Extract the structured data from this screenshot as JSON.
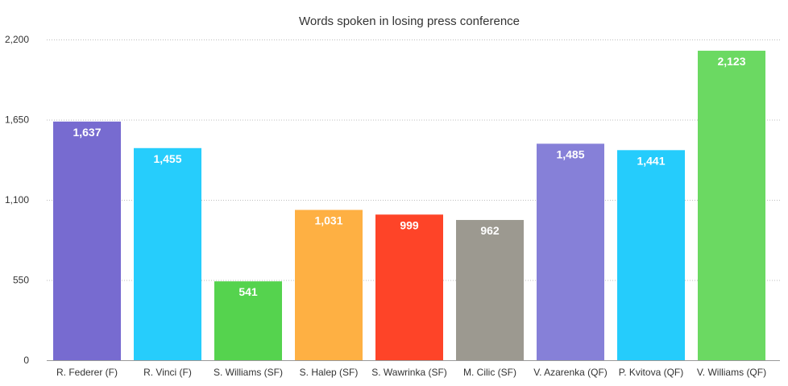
{
  "chart_data": {
    "type": "bar",
    "title": "Words spoken in losing press conference",
    "xlabel": "",
    "ylabel": "",
    "ylim": [
      0,
      2200
    ],
    "yticks": [
      "0",
      "550",
      "1,100",
      "1,650",
      "2,200"
    ],
    "ytick_values": [
      0,
      550,
      1100,
      1650,
      2200
    ],
    "grid": true,
    "categories": [
      "R. Federer (F)",
      "R. Vinci (F)",
      "S. Williams (SF)",
      "S. Halep (SF)",
      "S. Wawrinka (SF)",
      "M. Cilic (SF)",
      "V. Azarenka (QF)",
      "P. Kvitova (QF)",
      "V. Williams (QF)"
    ],
    "values": [
      1637,
      1455,
      541,
      1031,
      999,
      962,
      1485,
      1441,
      2123
    ],
    "value_labels": [
      "1,637",
      "1,455",
      "541",
      "1,031",
      "999",
      "962",
      "1,485",
      "1,441",
      "2,123"
    ],
    "colors": [
      "#776bd0",
      "#26cdfc",
      "#55d34e",
      "#feb043",
      "#fe4428",
      "#9c9990",
      "#8680d8",
      "#25ccfc",
      "#6bd962"
    ]
  }
}
